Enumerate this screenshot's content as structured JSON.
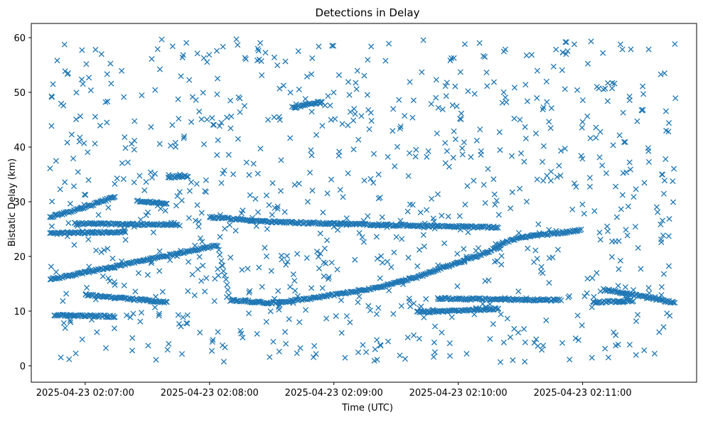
{
  "chart_data": {
    "type": "scatter",
    "title": "Detections in Delay",
    "xlabel": "Time (UTC)",
    "ylabel": "Bistatic Delay (km)",
    "marker": "x",
    "color": "#1f77b4",
    "x_unit": "seconds after 2025-04-23 02:06:00",
    "xlim": [
      34,
      355
    ],
    "ylim": [
      -3,
      62.6
    ],
    "x_ticks": [
      60,
      120,
      180,
      240,
      300
    ],
    "x_tick_labels": [
      "2025-04-23 02:07:00",
      "2025-04-23 02:08:00",
      "2025-04-23 02:09:00",
      "2025-04-23 02:10:00",
      "2025-04-23 02:11:00"
    ],
    "y_ticks": [
      0,
      10,
      20,
      30,
      40,
      50,
      60
    ],
    "y_tick_labels": [
      "0",
      "10",
      "20",
      "30",
      "40",
      "50",
      "60"
    ],
    "time_range": [
      43,
      345
    ],
    "tracks": [
      {
        "name": "main-track",
        "points": [
          [
            43,
            15.8
          ],
          [
            70,
            17.8
          ],
          [
            100,
            20.2
          ],
          [
            124,
            22.0
          ],
          [
            130,
            12.0
          ],
          [
            150,
            11.5
          ],
          [
            170,
            12.4
          ],
          [
            200,
            14.2
          ],
          [
            220,
            16.2
          ],
          [
            240,
            18.9
          ],
          [
            255,
            20.9
          ],
          [
            262,
            22.5
          ],
          [
            270,
            23.5
          ],
          [
            300,
            24.8
          ]
        ]
      },
      {
        "name": "upper-rising",
        "points": [
          [
            43,
            27.2
          ],
          [
            60,
            29.0
          ],
          [
            75,
            31.0
          ]
        ]
      },
      {
        "name": "low-decreasing",
        "points": [
          [
            60,
            13.0
          ],
          [
            80,
            12.3
          ],
          [
            100,
            11.6
          ]
        ]
      },
      {
        "name": "band-24",
        "points": [
          [
            43,
            24.2
          ],
          [
            80,
            24.5
          ]
        ]
      },
      {
        "name": "band-26",
        "points": [
          [
            55,
            26.0
          ],
          [
            105,
            25.8
          ]
        ]
      },
      {
        "name": "band-27-26",
        "points": [
          [
            120,
            27.2
          ],
          [
            150,
            26.3
          ],
          [
            200,
            25.8
          ],
          [
            260,
            25.3
          ]
        ]
      },
      {
        "name": "band-12",
        "points": [
          [
            230,
            12.3
          ],
          [
            290,
            12.0
          ]
        ]
      },
      {
        "name": "band-10",
        "points": [
          [
            220,
            9.8
          ],
          [
            260,
            10.4
          ]
        ]
      },
      {
        "name": "band-9",
        "points": [
          [
            45,
            9.3
          ],
          [
            75,
            9.0
          ]
        ]
      },
      {
        "name": "band-11",
        "points": [
          [
            305,
            11.6
          ],
          [
            325,
            11.9
          ]
        ]
      },
      {
        "name": "late-falling",
        "points": [
          [
            310,
            14.0
          ],
          [
            345,
            11.5
          ]
        ]
      },
      {
        "name": "cluster-48",
        "points": [
          [
            160,
            47.2
          ],
          [
            175,
            48.3
          ]
        ]
      },
      {
        "name": "cluster-34",
        "points": [
          [
            100,
            34.5
          ],
          [
            110,
            34.7
          ]
        ]
      },
      {
        "name": "cluster-30",
        "points": [
          [
            85,
            30.2
          ],
          [
            100,
            29.6
          ]
        ]
      }
    ],
    "noise_points": 900
  }
}
